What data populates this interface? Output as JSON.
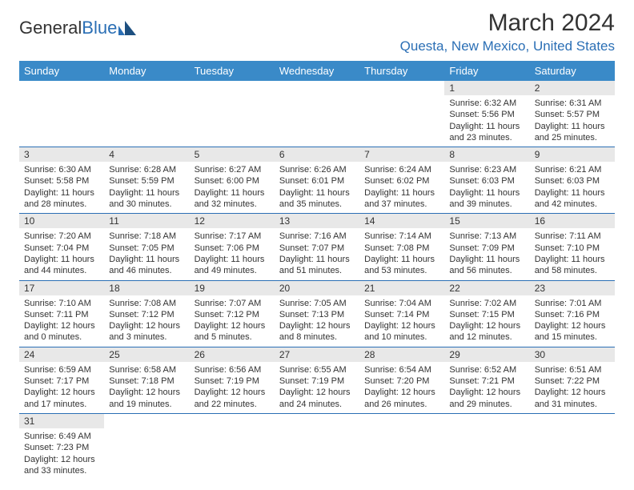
{
  "logo": {
    "part1": "General",
    "part2": "Blue"
  },
  "title": "March 2024",
  "location": "Questa, New Mexico, United States",
  "colors": {
    "header_bg": "#3a8ac8",
    "accent": "#2b6fb5",
    "daynum_bg": "#e8e8e8",
    "text": "#333333",
    "bg": "#ffffff"
  },
  "day_headers": [
    "Sunday",
    "Monday",
    "Tuesday",
    "Wednesday",
    "Thursday",
    "Friday",
    "Saturday"
  ],
  "weeks": [
    [
      null,
      null,
      null,
      null,
      null,
      {
        "n": "1",
        "sr": "Sunrise: 6:32 AM",
        "ss": "Sunset: 5:56 PM",
        "dl": "Daylight: 11 hours and 23 minutes."
      },
      {
        "n": "2",
        "sr": "Sunrise: 6:31 AM",
        "ss": "Sunset: 5:57 PM",
        "dl": "Daylight: 11 hours and 25 minutes."
      }
    ],
    [
      {
        "n": "3",
        "sr": "Sunrise: 6:30 AM",
        "ss": "Sunset: 5:58 PM",
        "dl": "Daylight: 11 hours and 28 minutes."
      },
      {
        "n": "4",
        "sr": "Sunrise: 6:28 AM",
        "ss": "Sunset: 5:59 PM",
        "dl": "Daylight: 11 hours and 30 minutes."
      },
      {
        "n": "5",
        "sr": "Sunrise: 6:27 AM",
        "ss": "Sunset: 6:00 PM",
        "dl": "Daylight: 11 hours and 32 minutes."
      },
      {
        "n": "6",
        "sr": "Sunrise: 6:26 AM",
        "ss": "Sunset: 6:01 PM",
        "dl": "Daylight: 11 hours and 35 minutes."
      },
      {
        "n": "7",
        "sr": "Sunrise: 6:24 AM",
        "ss": "Sunset: 6:02 PM",
        "dl": "Daylight: 11 hours and 37 minutes."
      },
      {
        "n": "8",
        "sr": "Sunrise: 6:23 AM",
        "ss": "Sunset: 6:03 PM",
        "dl": "Daylight: 11 hours and 39 minutes."
      },
      {
        "n": "9",
        "sr": "Sunrise: 6:21 AM",
        "ss": "Sunset: 6:03 PM",
        "dl": "Daylight: 11 hours and 42 minutes."
      }
    ],
    [
      {
        "n": "10",
        "sr": "Sunrise: 7:20 AM",
        "ss": "Sunset: 7:04 PM",
        "dl": "Daylight: 11 hours and 44 minutes."
      },
      {
        "n": "11",
        "sr": "Sunrise: 7:18 AM",
        "ss": "Sunset: 7:05 PM",
        "dl": "Daylight: 11 hours and 46 minutes."
      },
      {
        "n": "12",
        "sr": "Sunrise: 7:17 AM",
        "ss": "Sunset: 7:06 PM",
        "dl": "Daylight: 11 hours and 49 minutes."
      },
      {
        "n": "13",
        "sr": "Sunrise: 7:16 AM",
        "ss": "Sunset: 7:07 PM",
        "dl": "Daylight: 11 hours and 51 minutes."
      },
      {
        "n": "14",
        "sr": "Sunrise: 7:14 AM",
        "ss": "Sunset: 7:08 PM",
        "dl": "Daylight: 11 hours and 53 minutes."
      },
      {
        "n": "15",
        "sr": "Sunrise: 7:13 AM",
        "ss": "Sunset: 7:09 PM",
        "dl": "Daylight: 11 hours and 56 minutes."
      },
      {
        "n": "16",
        "sr": "Sunrise: 7:11 AM",
        "ss": "Sunset: 7:10 PM",
        "dl": "Daylight: 11 hours and 58 minutes."
      }
    ],
    [
      {
        "n": "17",
        "sr": "Sunrise: 7:10 AM",
        "ss": "Sunset: 7:11 PM",
        "dl": "Daylight: 12 hours and 0 minutes."
      },
      {
        "n": "18",
        "sr": "Sunrise: 7:08 AM",
        "ss": "Sunset: 7:12 PM",
        "dl": "Daylight: 12 hours and 3 minutes."
      },
      {
        "n": "19",
        "sr": "Sunrise: 7:07 AM",
        "ss": "Sunset: 7:12 PM",
        "dl": "Daylight: 12 hours and 5 minutes."
      },
      {
        "n": "20",
        "sr": "Sunrise: 7:05 AM",
        "ss": "Sunset: 7:13 PM",
        "dl": "Daylight: 12 hours and 8 minutes."
      },
      {
        "n": "21",
        "sr": "Sunrise: 7:04 AM",
        "ss": "Sunset: 7:14 PM",
        "dl": "Daylight: 12 hours and 10 minutes."
      },
      {
        "n": "22",
        "sr": "Sunrise: 7:02 AM",
        "ss": "Sunset: 7:15 PM",
        "dl": "Daylight: 12 hours and 12 minutes."
      },
      {
        "n": "23",
        "sr": "Sunrise: 7:01 AM",
        "ss": "Sunset: 7:16 PM",
        "dl": "Daylight: 12 hours and 15 minutes."
      }
    ],
    [
      {
        "n": "24",
        "sr": "Sunrise: 6:59 AM",
        "ss": "Sunset: 7:17 PM",
        "dl": "Daylight: 12 hours and 17 minutes."
      },
      {
        "n": "25",
        "sr": "Sunrise: 6:58 AM",
        "ss": "Sunset: 7:18 PM",
        "dl": "Daylight: 12 hours and 19 minutes."
      },
      {
        "n": "26",
        "sr": "Sunrise: 6:56 AM",
        "ss": "Sunset: 7:19 PM",
        "dl": "Daylight: 12 hours and 22 minutes."
      },
      {
        "n": "27",
        "sr": "Sunrise: 6:55 AM",
        "ss": "Sunset: 7:19 PM",
        "dl": "Daylight: 12 hours and 24 minutes."
      },
      {
        "n": "28",
        "sr": "Sunrise: 6:54 AM",
        "ss": "Sunset: 7:20 PM",
        "dl": "Daylight: 12 hours and 26 minutes."
      },
      {
        "n": "29",
        "sr": "Sunrise: 6:52 AM",
        "ss": "Sunset: 7:21 PM",
        "dl": "Daylight: 12 hours and 29 minutes."
      },
      {
        "n": "30",
        "sr": "Sunrise: 6:51 AM",
        "ss": "Sunset: 7:22 PM",
        "dl": "Daylight: 12 hours and 31 minutes."
      }
    ],
    [
      {
        "n": "31",
        "sr": "Sunrise: 6:49 AM",
        "ss": "Sunset: 7:23 PM",
        "dl": "Daylight: 12 hours and 33 minutes."
      },
      null,
      null,
      null,
      null,
      null,
      null
    ]
  ]
}
